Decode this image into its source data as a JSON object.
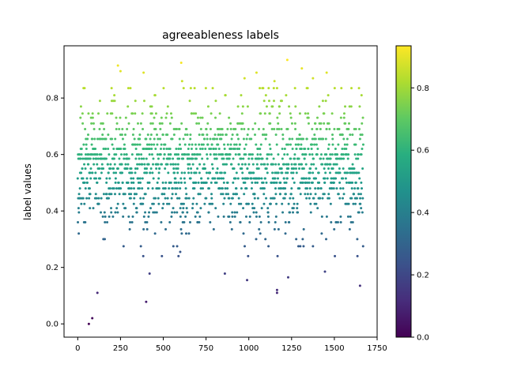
{
  "chart_data": {
    "type": "scatter",
    "title": "agreeableness labels",
    "xlabel": "",
    "ylabel": "label values",
    "xlim": [
      -80,
      1750
    ],
    "ylim": [
      -0.047,
      0.985
    ],
    "xticks": [
      0,
      250,
      500,
      750,
      1000,
      1250,
      1500,
      1750
    ],
    "yticks": [
      0.0,
      0.2,
      0.4,
      0.6,
      0.8
    ],
    "ytick_labels": [
      "0.0",
      "0.2",
      "0.4",
      "0.6",
      "0.8"
    ],
    "grid": false,
    "colormap": "viridis",
    "colorbar": {
      "min": 0.0,
      "max": 0.935,
      "ticks": [
        0.0,
        0.2,
        0.4,
        0.6,
        0.8
      ],
      "tick_labels": [
        "0.0",
        "0.2",
        "0.4",
        "0.6",
        "0.8"
      ]
    },
    "n_points": 1670,
    "y_levels": [
      0.0,
      0.02,
      0.078,
      0.11,
      0.12,
      0.14,
      0.155,
      0.165,
      0.178,
      0.185,
      0.2,
      0.22,
      0.24,
      0.255,
      0.275,
      0.3,
      0.32,
      0.335,
      0.36,
      0.38,
      0.395,
      0.41,
      0.425,
      0.445,
      0.46,
      0.48,
      0.5,
      0.515,
      0.535,
      0.55,
      0.565,
      0.585,
      0.6,
      0.62,
      0.635,
      0.655,
      0.67,
      0.69,
      0.71,
      0.73,
      0.745,
      0.77,
      0.79,
      0.81,
      0.835,
      0.86,
      0.89,
      0.91,
      0.935
    ],
    "highlight_points": [
      {
        "x": 65,
        "y": 0.0
      },
      {
        "x": 85,
        "y": 0.02
      },
      {
        "x": 400,
        "y": 0.078
      },
      {
        "x": 115,
        "y": 0.11
      },
      {
        "x": 1165,
        "y": 0.11
      },
      {
        "x": 1165,
        "y": 0.12
      },
      {
        "x": 1650,
        "y": 0.135
      },
      {
        "x": 1230,
        "y": 0.165
      },
      {
        "x": 860,
        "y": 0.178
      },
      {
        "x": 420,
        "y": 0.178
      },
      {
        "x": 990,
        "y": 0.155
      },
      {
        "x": 1445,
        "y": 0.185
      },
      {
        "x": 1225,
        "y": 0.935
      },
      {
        "x": 605,
        "y": 0.925
      },
      {
        "x": 235,
        "y": 0.915
      },
      {
        "x": 250,
        "y": 0.895
      },
      {
        "x": 385,
        "y": 0.89
      },
      {
        "x": 1045,
        "y": 0.89
      },
      {
        "x": 1310,
        "y": 0.905
      },
      {
        "x": 1455,
        "y": 0.89
      },
      {
        "x": 1375,
        "y": 0.87
      },
      {
        "x": 975,
        "y": 0.87
      },
      {
        "x": 1150,
        "y": 0.86
      },
      {
        "x": 610,
        "y": 0.86
      }
    ]
  }
}
